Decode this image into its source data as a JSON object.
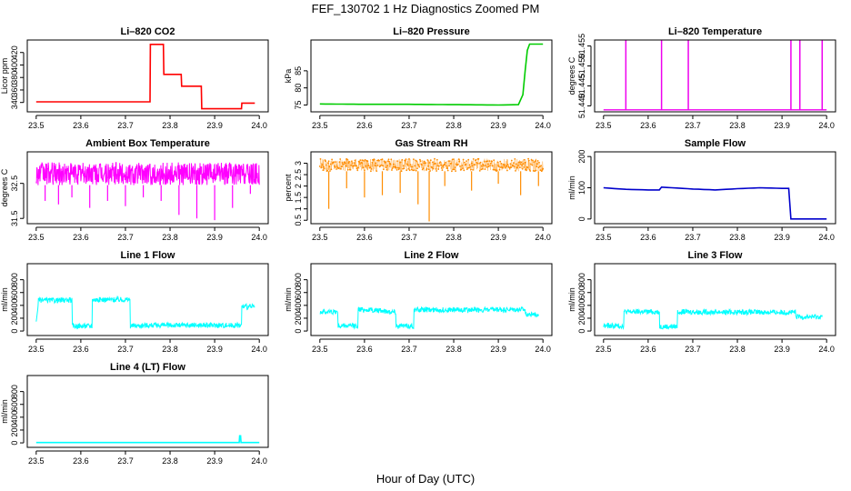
{
  "figure": {
    "title": "FEF_130702  1 Hz Diagnostics Zoomed PM",
    "xlabel": "Hour of Day (UTC)"
  },
  "chart_data": [
    {
      "type": "line",
      "title": "Li–820 CO2",
      "ylabel": "Licor ppm",
      "color": "#ff0000",
      "xlim": [
        23.5,
        24.0
      ],
      "ylim": [
        325,
        440
      ],
      "yticks": [
        340,
        360,
        380,
        400,
        420
      ],
      "xticks": [
        "23.5",
        "23.6",
        "23.7",
        "23.8",
        "23.9",
        "24.0"
      ],
      "series": [
        {
          "x": [
            23.5,
            23.6,
            23.7,
            23.755,
            23.756,
            23.785,
            23.786,
            23.825,
            23.826,
            23.87,
            23.871,
            23.96,
            23.961,
            23.99
          ],
          "y": [
            341,
            341,
            341,
            341,
            433,
            433,
            385,
            385,
            366,
            366,
            330,
            330,
            339,
            339
          ]
        }
      ]
    },
    {
      "type": "line",
      "title": "Li–820 Pressure",
      "ylabel": "kPa",
      "color": "#00cc00",
      "xlim": [
        23.5,
        24.0
      ],
      "ylim": [
        73,
        94
      ],
      "yticks": [
        75,
        80,
        85
      ],
      "xticks": [
        "23.5",
        "23.6",
        "23.7",
        "23.8",
        "23.9",
        "24.0"
      ],
      "series": [
        {
          "x": [
            23.5,
            23.6,
            23.7,
            23.8,
            23.9,
            23.945,
            23.955,
            23.96,
            23.965,
            23.97,
            24.0
          ],
          "y": [
            75.3,
            75.2,
            75.2,
            75.1,
            75.0,
            75.1,
            78,
            85,
            91,
            92.8,
            92.8
          ]
        }
      ]
    },
    {
      "type": "line",
      "title": "Li–820 Temperature",
      "ylabel": "degrees C",
      "color": "#ee00ee",
      "xlim": [
        23.5,
        24.0
      ],
      "ylim": [
        51.4385,
        51.4565
      ],
      "yticks": [
        51.44,
        51.445,
        51.45,
        51.455
      ],
      "ytick_labels": [
        "51.440",
        "51.445",
        "51.450",
        "51.455"
      ],
      "xticks": [
        "23.5",
        "23.6",
        "23.7",
        "23.8",
        "23.9",
        "24.0"
      ],
      "series": [
        {
          "baseline": 51.439,
          "spike_top": 51.4565,
          "spikes_x": [
            23.55,
            23.63,
            23.69,
            23.92,
            23.94,
            23.99
          ]
        }
      ]
    },
    {
      "type": "line",
      "title": "Ambient Box Temperature",
      "ylabel": "degrees C",
      "color": "#ff00ff",
      "xlim": [
        23.5,
        24.0
      ],
      "ylim": [
        31.35,
        33.4
      ],
      "yticks": [
        31.5,
        32.5
      ],
      "xticks": [
        "23.5",
        "23.6",
        "23.7",
        "23.8",
        "23.9",
        "24.0"
      ],
      "series": [
        {
          "band_low": 32.45,
          "band_high": 33.1,
          "dips_x": [
            23.52,
            23.55,
            23.58,
            23.62,
            23.66,
            23.7,
            23.74,
            23.78,
            23.82,
            23.86,
            23.9,
            23.94,
            23.98
          ],
          "dips_y": [
            32.0,
            31.9,
            32.1,
            31.8,
            32.0,
            31.85,
            32.1,
            32.0,
            31.6,
            31.5,
            31.45,
            31.8,
            32.2
          ]
        }
      ]
    },
    {
      "type": "scatter",
      "title": "Gas Stream RH",
      "ylabel": "percent",
      "color": "#ff8c00",
      "xlim": [
        23.5,
        24.0
      ],
      "ylim": [
        0.35,
        3.5
      ],
      "yticks": [
        0.5,
        1.0,
        1.5,
        2.0,
        2.5,
        3.0
      ],
      "xticks": [
        "23.5",
        "23.6",
        "23.7",
        "23.8",
        "23.9",
        "24.0"
      ],
      "series": [
        {
          "band_low": 2.65,
          "band_high": 3.2,
          "dips_x": [
            23.52,
            23.56,
            23.6,
            23.64,
            23.68,
            23.72,
            23.745,
            23.78,
            23.84,
            23.9,
            23.95,
            23.99
          ],
          "dips_y": [
            1.0,
            1.9,
            1.5,
            1.6,
            1.7,
            1.2,
            0.45,
            2.0,
            1.8,
            2.1,
            1.6,
            2.0
          ]
        }
      ]
    },
    {
      "type": "line",
      "title": "Sample Flow",
      "ylabel": "ml/min",
      "color": "#0000cc",
      "xlim": [
        23.5,
        24.0
      ],
      "ylim": [
        -15,
        215
      ],
      "yticks": [
        0,
        100,
        200
      ],
      "xticks": [
        "23.5",
        "23.6",
        "23.7",
        "23.8",
        "23.9",
        "24.0"
      ],
      "series": [
        {
          "x": [
            23.5,
            23.55,
            23.6,
            23.625,
            23.63,
            23.7,
            23.75,
            23.8,
            23.85,
            23.9,
            23.915,
            23.92,
            23.95,
            24.0
          ],
          "y": [
            100,
            95,
            93,
            93,
            102,
            96,
            93,
            97,
            100,
            98,
            98,
            0,
            0,
            0
          ]
        }
      ]
    },
    {
      "type": "line",
      "title": "Line 1 Flow",
      "ylabel": "ml/min",
      "color": "#00ffff",
      "xlim": [
        23.5,
        24.0
      ],
      "ylim": [
        -70,
        1050
      ],
      "yticks": [
        0,
        200,
        400,
        600,
        800
      ],
      "xticks": [
        "23.5",
        "23.6",
        "23.7",
        "23.8",
        "23.9",
        "24.0"
      ],
      "series": [
        {
          "x": [
            23.5,
            23.505,
            23.58,
            23.581,
            23.625,
            23.626,
            23.71,
            23.711,
            23.75,
            23.96,
            23.961,
            23.99
          ],
          "y": [
            120,
            480,
            480,
            80,
            80,
            490,
            490,
            80,
            90,
            90,
            380,
            380
          ],
          "noise": 40
        }
      ]
    },
    {
      "type": "line",
      "title": "Line 2 Flow",
      "ylabel": "ml/min",
      "color": "#00ffff",
      "xlim": [
        23.5,
        24.0
      ],
      "ylim": [
        -70,
        1050
      ],
      "yticks": [
        0,
        200,
        400,
        600,
        800
      ],
      "xticks": [
        "23.5",
        "23.6",
        "23.7",
        "23.8",
        "23.9",
        "24.0"
      ],
      "series": [
        {
          "x": [
            23.5,
            23.54,
            23.541,
            23.585,
            23.586,
            23.67,
            23.671,
            23.71,
            23.711,
            23.96,
            23.961,
            23.99
          ],
          "y": [
            300,
            300,
            80,
            80,
            340,
            300,
            80,
            80,
            330,
            330,
            260,
            260
          ],
          "noise": 40
        }
      ]
    },
    {
      "type": "line",
      "title": "Line 3 Flow",
      "ylabel": "ml/min",
      "color": "#00ffff",
      "xlim": [
        23.5,
        24.0
      ],
      "ylim": [
        -70,
        1050
      ],
      "yticks": [
        0,
        200,
        400,
        600,
        800
      ],
      "xticks": [
        "23.5",
        "23.6",
        "23.7",
        "23.8",
        "23.9",
        "24.0"
      ],
      "series": [
        {
          "x": [
            23.5,
            23.545,
            23.546,
            23.625,
            23.626,
            23.665,
            23.666,
            23.93,
            23.931,
            23.99
          ],
          "y": [
            80,
            80,
            300,
            300,
            70,
            70,
            300,
            290,
            220,
            220
          ],
          "noise": 40
        }
      ]
    },
    {
      "type": "line",
      "title": "Line 4 (LT) Flow",
      "ylabel": "ml/min",
      "color": "#00ffff",
      "xlim": [
        23.5,
        24.0
      ],
      "ylim": [
        -70,
        1050
      ],
      "yticks": [
        0,
        200,
        400,
        600,
        800
      ],
      "xticks": [
        "23.5",
        "23.6",
        "23.7",
        "23.8",
        "23.9",
        "24.0"
      ],
      "series": [
        {
          "x": [
            23.5,
            23.955,
            23.956,
            23.958,
            23.959,
            24.0
          ],
          "y": [
            5,
            5,
            110,
            110,
            5,
            5
          ],
          "noise": 0
        }
      ]
    }
  ]
}
